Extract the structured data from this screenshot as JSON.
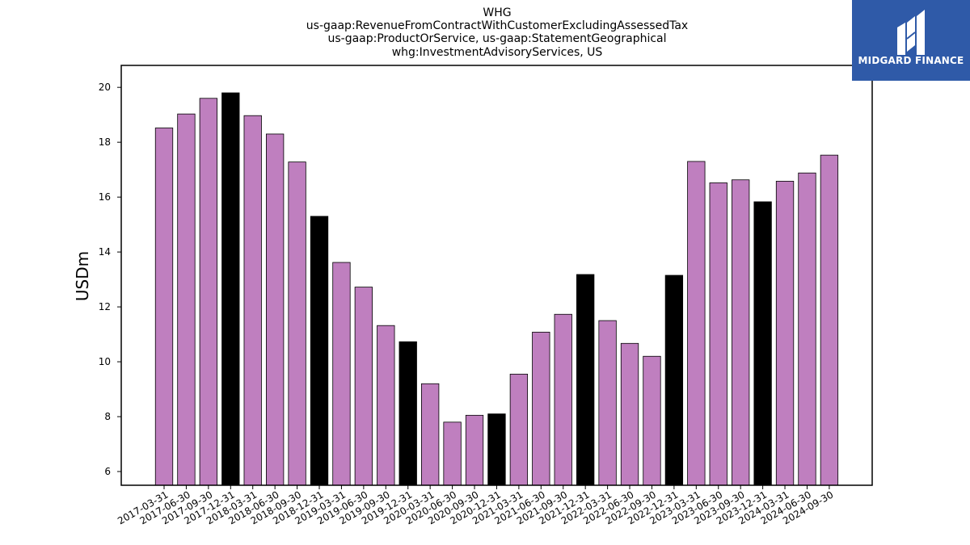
{
  "title_lines": [
    "WHG",
    "us-gaap:RevenueFromContractWithCustomerExcludingAssessedTax",
    "us-gaap:ProductOrService, us-gaap:StatementGeographical",
    "whg:InvestmentAdvisoryServices, US"
  ],
  "logo": {
    "text": "MIDGARD FINANCE",
    "background": "#2f5aa8"
  },
  "colors": {
    "bar": "#bf7fbf",
    "highlight_bar": "#000000",
    "edge": "#000000"
  },
  "chart_data": {
    "type": "bar",
    "title": "WHG\nus-gaap:RevenueFromContractWithCustomerExcludingAssessedTax\nus-gaap:ProductOrService, us-gaap:StatementGeographical\nwhg:InvestmentAdvisoryServices, US",
    "xlabel": "",
    "ylabel": "USDm",
    "ylim": [
      5.5,
      20.8
    ],
    "yticks": [
      6,
      8,
      10,
      12,
      14,
      16,
      18,
      20
    ],
    "grid": false,
    "categories": [
      "2017-03-31",
      "2017-06-30",
      "2017-09-30",
      "2017-12-31",
      "2018-03-31",
      "2018-06-30",
      "2018-09-30",
      "2018-12-31",
      "2019-03-31",
      "2019-06-30",
      "2019-09-30",
      "2019-12-31",
      "2020-03-31",
      "2020-06-30",
      "2020-09-30",
      "2020-12-31",
      "2021-03-31",
      "2021-06-30",
      "2021-09-30",
      "2021-12-31",
      "2022-03-31",
      "2022-06-30",
      "2022-09-30",
      "2022-12-31",
      "2023-03-31",
      "2023-06-30",
      "2023-09-30",
      "2023-12-31",
      "2024-03-31",
      "2024-06-30",
      "2024-09-30"
    ],
    "values": [
      18.52,
      19.03,
      19.6,
      19.8,
      18.97,
      18.3,
      17.28,
      15.3,
      13.62,
      12.72,
      11.32,
      10.73,
      9.2,
      7.8,
      8.05,
      8.1,
      9.55,
      11.08,
      11.73,
      13.18,
      11.5,
      10.67,
      10.2,
      13.15,
      17.3,
      16.52,
      16.63,
      15.83,
      16.58,
      16.88,
      17.53
    ],
    "highlighted": [
      false,
      false,
      false,
      true,
      false,
      false,
      false,
      true,
      false,
      false,
      false,
      true,
      false,
      false,
      false,
      true,
      false,
      false,
      false,
      true,
      false,
      false,
      false,
      true,
      false,
      false,
      false,
      true,
      false,
      false,
      false
    ]
  }
}
